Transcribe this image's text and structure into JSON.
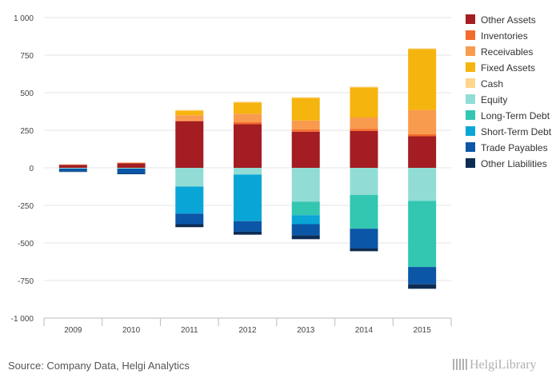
{
  "footer": {
    "source": "Source: Company Data, Helgi Analytics",
    "logo_text": "HelgiLibrary"
  },
  "chart_data": {
    "type": "bar",
    "stacked": true,
    "categories": [
      "2009",
      "2010",
      "2011",
      "2012",
      "2013",
      "2014",
      "2015"
    ],
    "ylim": [
      -1000,
      1000
    ],
    "yticks": [
      -1000,
      -750,
      -500,
      -250,
      0,
      250,
      500,
      750,
      1000
    ],
    "ytick_labels": [
      "-1 000",
      "-750",
      "-500",
      "-250",
      "0",
      "250",
      "500",
      "750",
      "1 000"
    ],
    "grid": true,
    "legend_position": "right",
    "series": [
      {
        "name": "Other Assets",
        "color": "#a31d22",
        "values": [
          20,
          30,
          310,
          290,
          240,
          245,
          210
        ]
      },
      {
        "name": "Inventories",
        "color": "#f36b2b",
        "values": [
          3,
          5,
          5,
          15,
          15,
          15,
          15
        ]
      },
      {
        "name": "Receivables",
        "color": "#f99b4e",
        "values": [
          0,
          0,
          35,
          55,
          60,
          75,
          160
        ]
      },
      {
        "name": "Fixed Assets",
        "color": "#f6b40e",
        "values": [
          0,
          0,
          30,
          75,
          150,
          200,
          405
        ]
      },
      {
        "name": "Cash",
        "color": "#fdd68c",
        "values": [
          1,
          1,
          5,
          5,
          5,
          5,
          5
        ]
      },
      {
        "name": "Equity",
        "color": "#91ddd6",
        "values": [
          -5,
          -5,
          -125,
          -45,
          -225,
          -180,
          -220
        ]
      },
      {
        "name": "Long-Term Debt",
        "color": "#33c6b1",
        "values": [
          0,
          0,
          0,
          0,
          -90,
          -225,
          -440
        ]
      },
      {
        "name": "Short-Term Debt",
        "color": "#0aa5d7",
        "values": [
          0,
          0,
          -180,
          -310,
          -60,
          0,
          0
        ]
      },
      {
        "name": "Trade Payables",
        "color": "#0b56a7",
        "values": [
          -20,
          -35,
          -70,
          -70,
          -75,
          -130,
          -115
        ]
      },
      {
        "name": "Other Liabilities",
        "color": "#0d2c53",
        "values": [
          -2,
          -2,
          -20,
          -20,
          -25,
          -20,
          -30
        ]
      }
    ]
  }
}
